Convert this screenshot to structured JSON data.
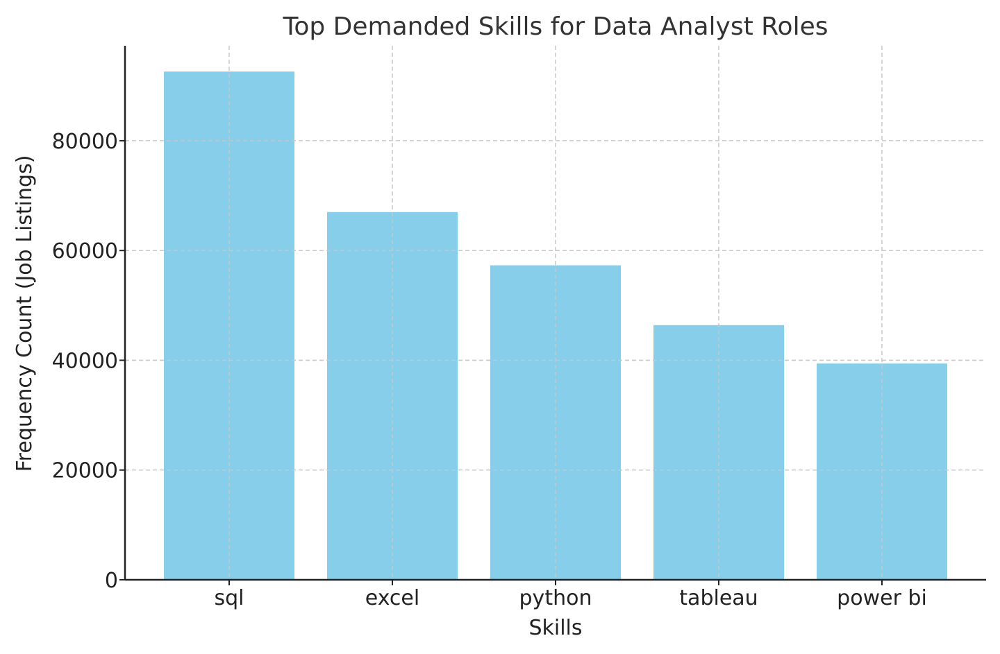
{
  "chart_data": {
    "type": "bar",
    "title": "Top Demanded Skills for Data Analyst Roles",
    "xlabel": "Skills",
    "ylabel": "Frequency Count (Job Listings)",
    "categories": [
      "sql",
      "excel",
      "python",
      "tableau",
      "power bi"
    ],
    "values": [
      92600,
      67000,
      57300,
      46400,
      39400
    ],
    "ylim": [
      0,
      97300
    ],
    "yticks": [
      0,
      20000,
      40000,
      60000,
      80000
    ],
    "ytick_labels": [
      "0",
      "20000",
      "40000",
      "60000",
      "80000"
    ],
    "grid": true,
    "bar_color": "#87ceeb"
  }
}
